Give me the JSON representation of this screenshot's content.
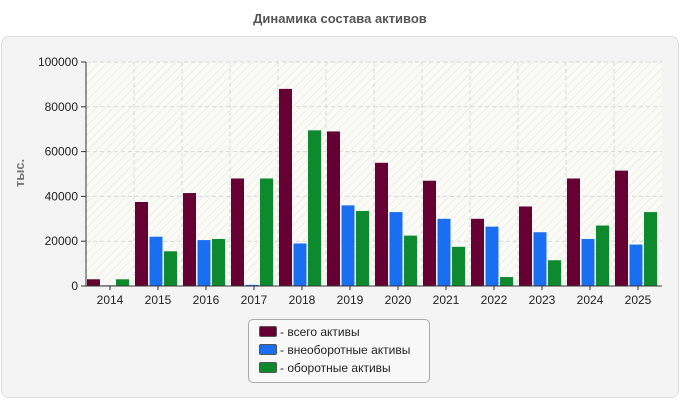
{
  "chart_data": {
    "type": "bar",
    "title": "Динамика состава активов",
    "xlabel": "",
    "ylabel": "тыс.",
    "ylim": [
      0,
      100000
    ],
    "yticks": [
      "0",
      "20000",
      "40000",
      "60000",
      "80000",
      "100000"
    ],
    "categories": [
      "2014",
      "2015",
      "2016",
      "2017",
      "2018",
      "2019",
      "2020",
      "2021",
      "2022",
      "2023",
      "2024",
      "2025"
    ],
    "series": [
      {
        "name": "- всего активы",
        "color": "#660033",
        "values": [
          3000,
          37500,
          41500,
          48000,
          88000,
          69000,
          55000,
          47000,
          30000,
          35500,
          48000,
          51500
        ]
      },
      {
        "name": "- внеоборотные активы",
        "color": "#1a6ef2",
        "values": [
          300,
          22000,
          20500,
          500,
          19000,
          36000,
          33000,
          30000,
          26500,
          24000,
          21000,
          18500
        ]
      },
      {
        "name": "- оборотные активы",
        "color": "#0e8a2e",
        "values": [
          3000,
          15500,
          21000,
          48000,
          69500,
          33500,
          22500,
          17500,
          4000,
          11500,
          27000,
          33000
        ]
      }
    ],
    "grid": true,
    "legend_position": "bottom"
  }
}
